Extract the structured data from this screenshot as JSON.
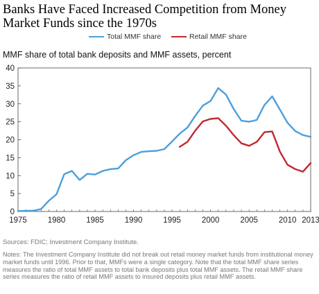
{
  "title": "Banks Have Faced Increased Competition from Money Market Funds since the 1970s",
  "subtitle": "MMF share of total bank deposits and MMF assets, percent",
  "sources": "Sources: FDIC; Investment Company Institute.",
  "notes": "Notes: The Investment Company Institute did not break out retail money market funds from institutional money market funds until 1996. Prior to that, MMFs were a single category. Note that the total MMF share series measures the ratio of total MMF assets to total bank deposits plus total MMF assets. The retail MMF share series measures the ratio of retail MMF assets to insured deposits plus retail MMF assets.",
  "colors": {
    "total": "#4a9fdc",
    "retail": "#c0282e",
    "axis": "#444444"
  },
  "chart_data": {
    "type": "line",
    "xlim": [
      1975,
      2013
    ],
    "ylim": [
      0,
      40
    ],
    "x_ticks": [
      1975,
      1980,
      1985,
      1990,
      1995,
      2000,
      2005,
      2010,
      2013
    ],
    "x_tick_labels": [
      "1975",
      "1980",
      "1985",
      "1990",
      "1995",
      "2000",
      "2005",
      "2010",
      "2013"
    ],
    "y_ticks": [
      0,
      5,
      10,
      15,
      20,
      25,
      30,
      35,
      40
    ],
    "y_tick_labels": [
      "0",
      "5",
      "10",
      "15",
      "20",
      "25",
      "30",
      "35",
      "40"
    ],
    "legend_position": "top-center",
    "grid": false,
    "series": [
      {
        "name": "Total MMF share",
        "color": "#4a9fdc",
        "x": [
          1975,
          1976,
          1977,
          1978,
          1979,
          1980,
          1981,
          1982,
          1983,
          1984,
          1985,
          1986,
          1987,
          1988,
          1989,
          1990,
          1991,
          1992,
          1993,
          1994,
          1995,
          1996,
          1997,
          1998,
          1999,
          2000,
          2001,
          2002,
          2003,
          2004,
          2005,
          2006,
          2007,
          2008,
          2009,
          2010,
          2011,
          2012,
          2013
        ],
        "y": [
          0.1,
          0.2,
          0.2,
          0.7,
          3.0,
          4.8,
          10.4,
          11.3,
          8.8,
          10.5,
          10.3,
          11.3,
          11.8,
          12.0,
          14.3,
          15.7,
          16.6,
          16.8,
          16.9,
          17.4,
          19.5,
          21.7,
          23.4,
          26.6,
          29.5,
          30.8,
          34.4,
          32.6,
          28.6,
          25.3,
          25.0,
          25.5,
          29.7,
          32.1,
          28.4,
          24.7,
          22.4,
          21.3,
          20.8
        ]
      },
      {
        "name": "Retail MMF share",
        "color": "#c0282e",
        "x": [
          1996,
          1997,
          1998,
          1999,
          2000,
          2001,
          2002,
          2003,
          2004,
          2005,
          2006,
          2007,
          2008,
          2009,
          2010,
          2011,
          2012,
          2013
        ],
        "y": [
          18.0,
          19.4,
          22.5,
          25.1,
          25.8,
          26.0,
          23.9,
          21.3,
          19.0,
          18.3,
          19.4,
          22.1,
          22.3,
          16.7,
          13.0,
          11.8,
          11.1,
          13.5
        ]
      }
    ]
  }
}
